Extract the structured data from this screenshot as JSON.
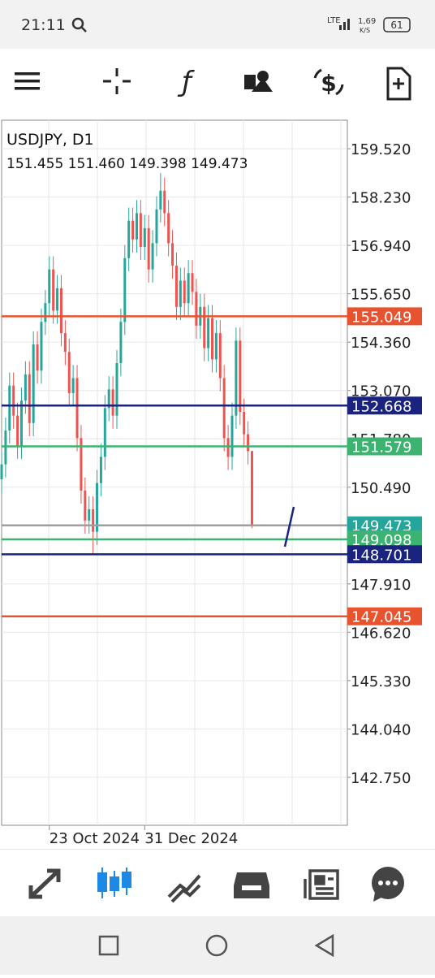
{
  "status_bar": {
    "time": "21:11",
    "network": "LTE",
    "speed": "1,69",
    "speed_unit": "K/S",
    "battery": "61"
  },
  "chart_data": {
    "type": "candlestick",
    "title": "USDJPY, D1",
    "ohlc_label": "151.455 151.460 149.398 149.473",
    "colors": {
      "up": "#26a69a",
      "down": "#ef5350"
    },
    "open": [
      150.7,
      151.1,
      152.0,
      153.2,
      152.4,
      151.6,
      152.8,
      153.5,
      152.2,
      154.3,
      153.6,
      154.9,
      155.4,
      156.3,
      155.2,
      155.8,
      154.6,
      154.1,
      153.0,
      153.4,
      151.8,
      150.4,
      149.6,
      149.9,
      149.3,
      150.6,
      151.3,
      152.6,
      153.1,
      152.4,
      153.8,
      154.9,
      156.6,
      157.6,
      157.1,
      157.8,
      156.9,
      157.4,
      156.3,
      157.0,
      157.9,
      158.4,
      157.8,
      157.0,
      156.4,
      155.3,
      156.0,
      155.4,
      156.2,
      155.7,
      154.8,
      155.3,
      154.2,
      155.0,
      153.9,
      154.6,
      153.4,
      151.8,
      151.3,
      152.4,
      154.4,
      152.5,
      151.9,
      151.455
    ],
    "high": [
      151.45,
      152.35,
      153.55,
      153.55,
      152.75,
      153.15,
      153.85,
      153.85,
      154.65,
      154.65,
      155.25,
      155.75,
      156.65,
      156.65,
      156.15,
      156.15,
      154.95,
      154.45,
      153.75,
      153.75,
      152.15,
      150.75,
      150.25,
      150.25,
      150.95,
      151.65,
      152.95,
      153.45,
      153.45,
      154.15,
      155.25,
      156.95,
      157.95,
      157.95,
      158.15,
      158.15,
      157.75,
      157.75,
      157.35,
      158.25,
      158.87,
      158.75,
      158.15,
      157.35,
      156.75,
      156.35,
      156.35,
      156.55,
      156.55,
      156.05,
      155.65,
      155.65,
      155.35,
      155.35,
      154.95,
      154.95,
      153.75,
      152.15,
      152.75,
      154.75,
      154.75,
      152.85,
      152.25,
      151.46
    ],
    "low": [
      150.35,
      150.75,
      151.65,
      152.05,
      151.25,
      151.25,
      152.45,
      151.85,
      151.85,
      153.25,
      153.25,
      154.55,
      155.05,
      154.85,
      154.85,
      154.25,
      153.75,
      152.65,
      152.65,
      151.45,
      150.05,
      149.25,
      149.25,
      148.7,
      148.95,
      150.25,
      150.95,
      152.25,
      152.05,
      152.05,
      153.45,
      154.55,
      156.25,
      156.75,
      156.75,
      156.55,
      156.55,
      155.95,
      155.95,
      156.65,
      157.55,
      157.45,
      156.65,
      156.05,
      154.95,
      154.95,
      155.05,
      155.05,
      155.35,
      154.45,
      154.45,
      153.85,
      153.85,
      153.55,
      153.55,
      153.05,
      151.45,
      150.95,
      150.95,
      152.05,
      152.15,
      151.55,
      151.1,
      149.398
    ],
    "close": [
      151.1,
      152.0,
      153.2,
      152.4,
      151.6,
      152.8,
      153.5,
      152.2,
      154.3,
      153.6,
      154.9,
      155.4,
      156.3,
      155.2,
      155.8,
      154.6,
      154.1,
      153.0,
      153.4,
      151.8,
      150.4,
      149.6,
      149.9,
      149.3,
      150.6,
      151.3,
      152.6,
      153.1,
      152.4,
      153.8,
      154.9,
      156.6,
      157.6,
      157.1,
      157.8,
      156.9,
      157.4,
      156.3,
      157.0,
      157.9,
      158.4,
      157.8,
      157.0,
      156.4,
      155.3,
      156.0,
      155.4,
      156.2,
      155.7,
      154.8,
      155.3,
      154.2,
      155.0,
      153.9,
      154.6,
      153.4,
      151.8,
      151.3,
      152.4,
      154.4,
      152.5,
      151.9,
      151.455,
      149.473
    ],
    "xlim": [
      0,
      87
    ],
    "xticks": [
      {
        "value": 12,
        "label": "23 Oct 2024"
      },
      {
        "value": 36,
        "label": "31 Dec 2024"
      }
    ],
    "ylim": [
      141.47,
      160.28
    ],
    "yticks": [
      {
        "value": 159.52,
        "label": "159.520"
      },
      {
        "value": 158.23,
        "label": "158.230"
      },
      {
        "value": 156.94,
        "label": "156.940"
      },
      {
        "value": 155.65,
        "label": "155.650"
      },
      {
        "value": 154.36,
        "label": "154.360"
      },
      {
        "value": 153.07,
        "label": "153.070"
      },
      {
        "value": 151.78,
        "label": "151.780"
      },
      {
        "value": 150.49,
        "label": "150.490"
      },
      {
        "value": 147.91,
        "label": "147.910"
      },
      {
        "value": 146.62,
        "label": "146.620"
      },
      {
        "value": 145.33,
        "label": "145.330"
      },
      {
        "value": 144.04,
        "label": "144.040"
      },
      {
        "value": 142.75,
        "label": "142.750"
      }
    ],
    "levels": [
      {
        "value": 155.049,
        "color": "#e8532f",
        "label_color": "#e8532f"
      },
      {
        "value": 152.668,
        "color": "#1a237e",
        "label_color": "#1a237e"
      },
      {
        "value": 151.579,
        "color": "#3cb371",
        "label_color": "#3cb371"
      },
      {
        "value": 149.473,
        "color": "#9e9e9e",
        "label_color": "#26a69a"
      },
      {
        "value": 149.098,
        "color": "#3cb371",
        "label_color": "#3cb371"
      },
      {
        "value": 148.701,
        "color": "#1a237e",
        "label_color": "#1a237e"
      },
      {
        "value": 147.045,
        "color": "#e8532f",
        "label_color": "#e8532f"
      }
    ]
  }
}
